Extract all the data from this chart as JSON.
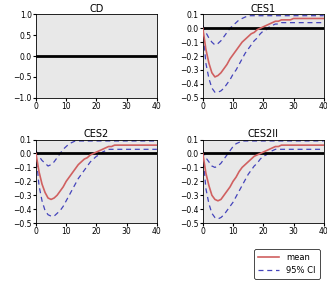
{
  "titles": [
    "CD",
    "CES1",
    "CES2",
    "CES2II"
  ],
  "x_max": 40,
  "cd_ylim": [
    -1,
    1
  ],
  "ces_ylim": [
    -0.5,
    0.1
  ],
  "cd_yticks": [
    -1,
    -0.5,
    0,
    0.5,
    1
  ],
  "ces_yticks": [
    -0.5,
    -0.4,
    -0.3,
    -0.2,
    -0.1,
    0,
    0.1
  ],
  "xticks": [
    0,
    10,
    20,
    30,
    40
  ],
  "zero_line_color": "#000000",
  "mean_color": "#d06060",
  "ci_color": "#4444bb",
  "bg_color": "#e8e8e8",
  "ces1_mean": [
    0.0,
    -0.15,
    -0.25,
    -0.32,
    -0.35,
    -0.34,
    -0.32,
    -0.29,
    -0.26,
    -0.22,
    -0.19,
    -0.16,
    -0.13,
    -0.1,
    -0.08,
    -0.06,
    -0.04,
    -0.03,
    -0.01,
    0.0,
    0.01,
    0.02,
    0.03,
    0.04,
    0.05,
    0.05,
    0.06,
    0.06,
    0.06,
    0.06,
    0.07,
    0.07,
    0.07,
    0.07,
    0.07,
    0.07,
    0.07,
    0.07,
    0.07,
    0.07,
    0.07
  ],
  "ces1_upper": [
    0.02,
    -0.03,
    -0.07,
    -0.1,
    -0.12,
    -0.11,
    -0.09,
    -0.06,
    -0.03,
    0.0,
    0.02,
    0.04,
    0.06,
    0.07,
    0.08,
    0.09,
    0.09,
    0.09,
    0.09,
    0.09,
    0.09,
    0.09,
    0.09,
    0.09,
    0.09,
    0.09,
    0.09,
    0.09,
    0.09,
    0.09,
    0.09,
    0.09,
    0.09,
    0.09,
    0.09,
    0.09,
    0.09,
    0.09,
    0.09,
    0.09,
    0.09
  ],
  "ces1_lower": [
    0.0,
    -0.25,
    -0.36,
    -0.43,
    -0.46,
    -0.46,
    -0.45,
    -0.43,
    -0.4,
    -0.37,
    -0.33,
    -0.3,
    -0.26,
    -0.22,
    -0.18,
    -0.15,
    -0.12,
    -0.09,
    -0.07,
    -0.04,
    -0.02,
    -0.01,
    0.01,
    0.02,
    0.03,
    0.03,
    0.04,
    0.04,
    0.04,
    0.04,
    0.04,
    0.04,
    0.04,
    0.04,
    0.04,
    0.04,
    0.04,
    0.04,
    0.04,
    0.04,
    0.04
  ],
  "ces2_mean": [
    0.0,
    -0.13,
    -0.22,
    -0.28,
    -0.32,
    -0.33,
    -0.32,
    -0.3,
    -0.27,
    -0.24,
    -0.2,
    -0.17,
    -0.14,
    -0.11,
    -0.08,
    -0.06,
    -0.04,
    -0.03,
    -0.01,
    0.0,
    0.01,
    0.02,
    0.03,
    0.04,
    0.05,
    0.05,
    0.06,
    0.06,
    0.06,
    0.06,
    0.06,
    0.06,
    0.06,
    0.06,
    0.06,
    0.06,
    0.06,
    0.06,
    0.06,
    0.06,
    0.06
  ],
  "ces2_upper": [
    0.02,
    -0.02,
    -0.05,
    -0.07,
    -0.09,
    -0.08,
    -0.06,
    -0.03,
    0.0,
    0.03,
    0.05,
    0.07,
    0.08,
    0.09,
    0.09,
    0.09,
    0.09,
    0.09,
    0.09,
    0.09,
    0.09,
    0.09,
    0.09,
    0.09,
    0.09,
    0.09,
    0.09,
    0.09,
    0.09,
    0.09,
    0.09,
    0.09,
    0.09,
    0.09,
    0.09,
    0.09,
    0.09,
    0.09,
    0.09,
    0.09,
    0.09
  ],
  "ces2_lower": [
    0.0,
    -0.23,
    -0.34,
    -0.41,
    -0.44,
    -0.45,
    -0.45,
    -0.43,
    -0.41,
    -0.38,
    -0.34,
    -0.3,
    -0.26,
    -0.22,
    -0.18,
    -0.15,
    -0.12,
    -0.09,
    -0.06,
    -0.04,
    -0.02,
    -0.01,
    0.01,
    0.02,
    0.03,
    0.03,
    0.03,
    0.03,
    0.03,
    0.03,
    0.03,
    0.03,
    0.03,
    0.03,
    0.03,
    0.03,
    0.03,
    0.03,
    0.03,
    0.03,
    0.03
  ],
  "ces2ii_mean": [
    0.0,
    -0.14,
    -0.23,
    -0.3,
    -0.33,
    -0.34,
    -0.33,
    -0.3,
    -0.27,
    -0.24,
    -0.2,
    -0.17,
    -0.13,
    -0.1,
    -0.08,
    -0.06,
    -0.04,
    -0.02,
    -0.01,
    0.0,
    0.01,
    0.02,
    0.03,
    0.04,
    0.05,
    0.05,
    0.06,
    0.06,
    0.06,
    0.06,
    0.06,
    0.06,
    0.06,
    0.06,
    0.06,
    0.06,
    0.06,
    0.06,
    0.06,
    0.06,
    0.06
  ],
  "ces2ii_upper": [
    0.02,
    -0.03,
    -0.06,
    -0.09,
    -0.1,
    -0.09,
    -0.07,
    -0.04,
    -0.01,
    0.02,
    0.05,
    0.07,
    0.08,
    0.09,
    0.09,
    0.09,
    0.09,
    0.09,
    0.09,
    0.09,
    0.09,
    0.09,
    0.09,
    0.09,
    0.09,
    0.09,
    0.09,
    0.09,
    0.09,
    0.09,
    0.09,
    0.09,
    0.09,
    0.09,
    0.09,
    0.09,
    0.09,
    0.09,
    0.09,
    0.09,
    0.09
  ],
  "ces2ii_lower": [
    0.0,
    -0.25,
    -0.36,
    -0.43,
    -0.46,
    -0.47,
    -0.46,
    -0.44,
    -0.41,
    -0.38,
    -0.35,
    -0.31,
    -0.27,
    -0.23,
    -0.19,
    -0.15,
    -0.12,
    -0.09,
    -0.07,
    -0.04,
    -0.02,
    -0.01,
    0.01,
    0.02,
    0.03,
    0.03,
    0.03,
    0.03,
    0.03,
    0.03,
    0.03,
    0.03,
    0.03,
    0.03,
    0.03,
    0.03,
    0.03,
    0.03,
    0.03,
    0.03,
    0.03
  ]
}
